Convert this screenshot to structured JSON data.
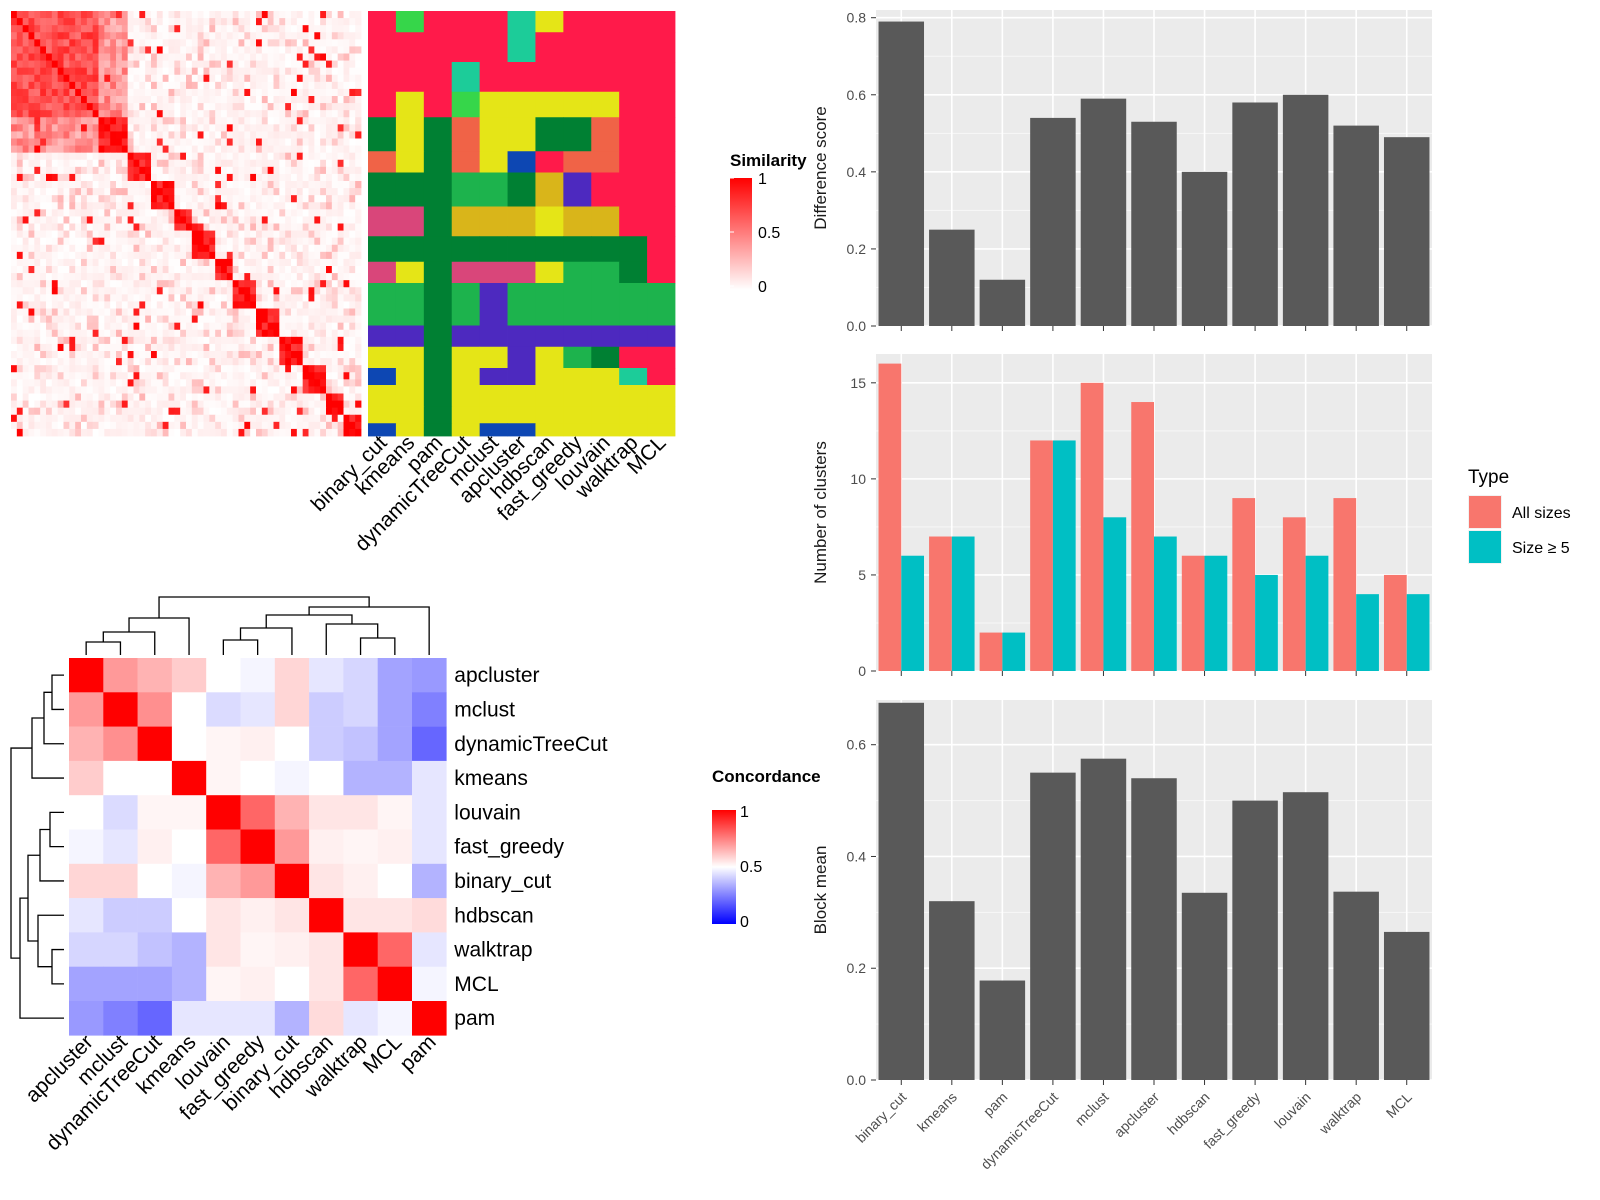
{
  "methods_heat": [
    "binary_cut",
    "kmeans",
    "pam",
    "dynamicTreeCut",
    "mclust",
    "apcluster",
    "hdbscan",
    "fast_greedy",
    "louvain",
    "walktrap",
    "MCL"
  ],
  "methods_bar": [
    "binary_cut",
    "kmeans",
    "pam",
    "dynamicTreeCut",
    "mclust",
    "apcluster",
    "hdbscan",
    "fast_greedy",
    "louvain",
    "walktrap",
    "MCL"
  ],
  "methods_concord": [
    "apcluster",
    "mclust",
    "dynamicTreeCut",
    "kmeans",
    "louvain",
    "fast_greedy",
    "binary_cut",
    "hdbscan",
    "walktrap",
    "MCL",
    "pam"
  ],
  "similarity_legend": {
    "title": "Similarity",
    "ticks": [
      "1",
      "0.5",
      "0"
    ],
    "colors": [
      "#ffffff",
      "#ff0000"
    ]
  },
  "concordance_legend": {
    "title": "Concordance",
    "ticks": [
      "1",
      "0.5",
      "0"
    ],
    "colors": [
      "#0000ff",
      "#ffffff",
      "#ff0000"
    ]
  },
  "chart_data": [
    {
      "type": "bar",
      "ylabel": "Difference score",
      "categories": [
        "binary_cut",
        "kmeans",
        "pam",
        "dynamicTreeCut",
        "mclust",
        "apcluster",
        "hdbscan",
        "fast_greedy",
        "louvain",
        "walktrap",
        "MCL"
      ],
      "values": [
        0.79,
        0.25,
        0.12,
        0.54,
        0.59,
        0.53,
        0.4,
        0.58,
        0.6,
        0.52,
        0.49
      ],
      "ylim": [
        0,
        0.82
      ],
      "yticks": [
        "0.0",
        "0.2",
        "0.4",
        "0.6",
        "0.8"
      ],
      "color": "#595959"
    },
    {
      "type": "bar",
      "ylabel": "Number of clusters",
      "categories": [
        "binary_cut",
        "kmeans",
        "pam",
        "dynamicTreeCut",
        "mclust",
        "apcluster",
        "hdbscan",
        "fast_greedy",
        "louvain",
        "walktrap",
        "MCL"
      ],
      "series": [
        {
          "name": "All sizes",
          "color": "#f8766d",
          "values": [
            16,
            7,
            2,
            12,
            15,
            14,
            6,
            9,
            8,
            9,
            5
          ]
        },
        {
          "name": "Size ≥ 5",
          "color": "#00bfc4",
          "values": [
            6,
            7,
            2,
            12,
            8,
            7,
            6,
            5,
            6,
            4,
            4
          ]
        }
      ],
      "ylim": [
        0,
        16.5
      ],
      "yticks": [
        "0",
        "5",
        "10",
        "15"
      ],
      "legend": {
        "title": "Type",
        "position": "right"
      }
    },
    {
      "type": "bar",
      "ylabel": "Block mean",
      "categories": [
        "binary_cut",
        "kmeans",
        "pam",
        "dynamicTreeCut",
        "mclust",
        "apcluster",
        "hdbscan",
        "fast_greedy",
        "louvain",
        "walktrap",
        "MCL"
      ],
      "values": [
        0.675,
        0.32,
        0.178,
        0.55,
        0.575,
        0.54,
        0.335,
        0.5,
        0.515,
        0.337,
        0.265
      ],
      "ylim": [
        0,
        0.68
      ],
      "yticks": [
        "0.0",
        "0.2",
        "0.4",
        "0.6"
      ],
      "color": "#595959"
    },
    {
      "type": "heatmap",
      "name": "concordance",
      "labels": [
        "apcluster",
        "mclust",
        "dynamicTreeCut",
        "kmeans",
        "louvain",
        "fast_greedy",
        "binary_cut",
        "hdbscan",
        "walktrap",
        "MCL",
        "pam"
      ],
      "matrix": [
        [
          1.0,
          0.7,
          0.65,
          0.6,
          0.5,
          0.48,
          0.58,
          0.45,
          0.42,
          0.32,
          0.3
        ],
        [
          0.7,
          1.0,
          0.72,
          0.5,
          0.43,
          0.45,
          0.58,
          0.4,
          0.42,
          0.32,
          0.25
        ],
        [
          0.65,
          0.72,
          1.0,
          0.5,
          0.52,
          0.53,
          0.5,
          0.4,
          0.38,
          0.32,
          0.2
        ],
        [
          0.6,
          0.5,
          0.5,
          1.0,
          0.52,
          0.5,
          0.48,
          0.5,
          0.35,
          0.35,
          0.45
        ],
        [
          0.5,
          0.43,
          0.52,
          0.52,
          1.0,
          0.8,
          0.65,
          0.55,
          0.55,
          0.52,
          0.45
        ],
        [
          0.48,
          0.45,
          0.53,
          0.5,
          0.8,
          1.0,
          0.7,
          0.53,
          0.52,
          0.53,
          0.45
        ],
        [
          0.58,
          0.58,
          0.5,
          0.48,
          0.65,
          0.7,
          1.0,
          0.55,
          0.53,
          0.5,
          0.35
        ],
        [
          0.45,
          0.4,
          0.4,
          0.5,
          0.55,
          0.53,
          0.55,
          1.0,
          0.55,
          0.55,
          0.57
        ],
        [
          0.42,
          0.42,
          0.38,
          0.35,
          0.55,
          0.52,
          0.53,
          0.55,
          1.0,
          0.8,
          0.45
        ],
        [
          0.32,
          0.32,
          0.32,
          0.35,
          0.52,
          0.53,
          0.5,
          0.55,
          0.8,
          1.0,
          0.48
        ],
        [
          0.3,
          0.25,
          0.2,
          0.45,
          0.45,
          0.45,
          0.35,
          0.57,
          0.45,
          0.48,
          1.0
        ]
      ],
      "color_range": [
        0,
        1
      ]
    }
  ]
}
